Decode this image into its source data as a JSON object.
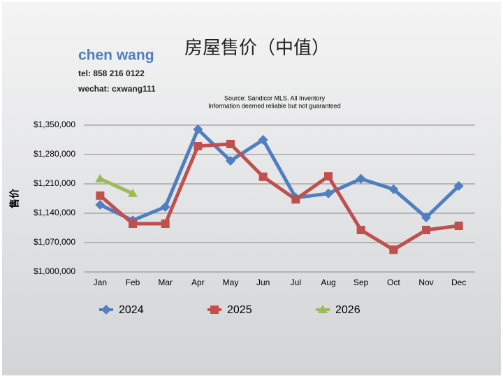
{
  "chart_data": {
    "type": "line",
    "title": "房屋售价（中值）",
    "contact": [
      "chen wang",
      "tel: 858 216 0122",
      "wechat: cxwang111"
    ],
    "notes": [
      "Source: Sandicor MLS. All Inventory",
      "Information deemed reliable but not guaranteed"
    ],
    "y_label": "售价",
    "categories": [
      "Jan",
      "Feb",
      "Mar",
      "Apr",
      "May",
      "Jun",
      "Jul",
      "Aug",
      "Sep",
      "Oct",
      "Nov",
      "Dec"
    ],
    "series": [
      {
        "name": "2024",
        "color": "#4f7fc0",
        "marker": "diamond",
        "values": [
          1160000,
          1123000,
          1155000,
          1340000,
          1265000,
          1315000,
          1177000,
          1187000,
          1222000,
          1197000,
          1130000,
          1205000
        ]
      },
      {
        "name": "2025",
        "color": "#c0504d",
        "marker": "square",
        "values": [
          1182000,
          1115000,
          1115000,
          1300000,
          1305000,
          1227000,
          1173000,
          1228000,
          1100000,
          1053000,
          1100000,
          1110000
        ]
      },
      {
        "name": "2026",
        "color": "#9bbb59",
        "marker": "triangle",
        "values": [
          1222000,
          1187000,
          null,
          null,
          null,
          null,
          null,
          null,
          null,
          null,
          null,
          null
        ]
      }
    ],
    "ylim": [
      1000000,
      1350000
    ],
    "yticks": [
      {
        "value": 1000000,
        "label": "$1,000,000"
      },
      {
        "value": 1070000,
        "label": "$1,070,000"
      },
      {
        "value": 1140000,
        "label": "$1,140,000"
      },
      {
        "value": 1210000,
        "label": "$1,210,000"
      },
      {
        "value": 1280000,
        "label": "$1,280,000"
      },
      {
        "value": 1350000,
        "label": "$1,350,000"
      }
    ],
    "grid": true
  }
}
